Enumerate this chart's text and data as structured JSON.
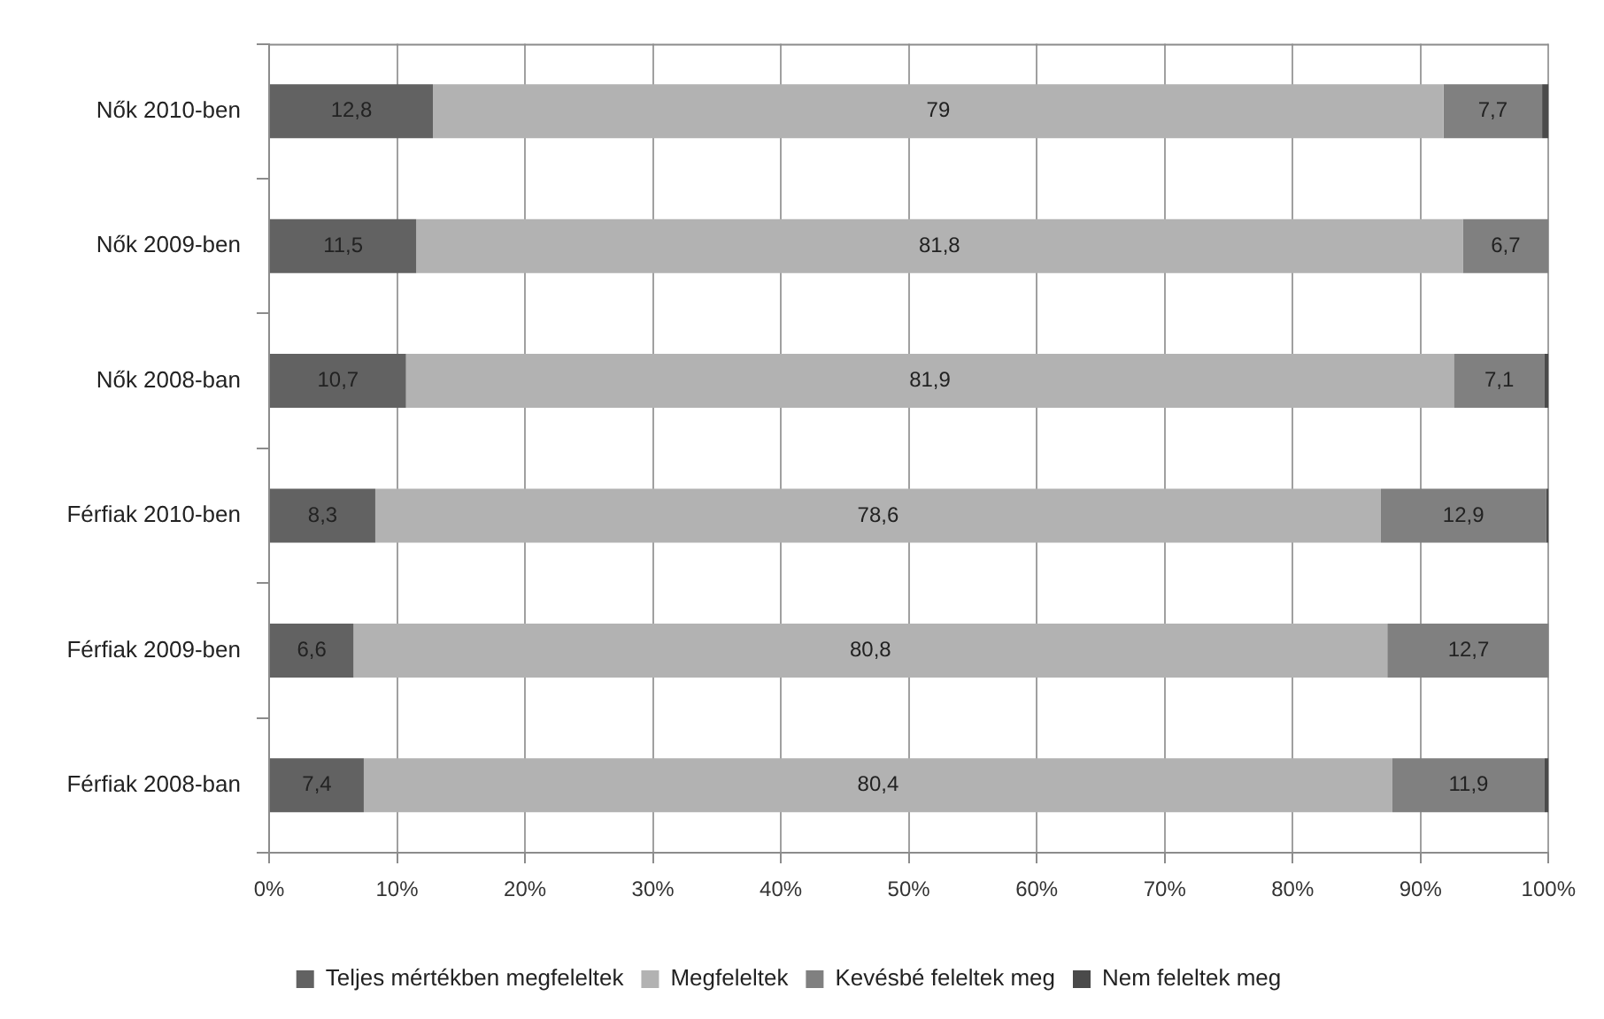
{
  "chart_data": {
    "type": "bar",
    "orientation": "horizontal",
    "stacked": true,
    "categories": [
      "Nők 2010-ben",
      "Nők 2009-ben",
      "Nők 2008-ban",
      "Férfiak 2010-ben",
      "Férfiak 2009-ben",
      "Férfiak 2008-ban"
    ],
    "series": [
      {
        "name": "Teljes mértékben megfeleltek",
        "color": "#626262",
        "values": [
          12.8,
          11.5,
          10.7,
          8.3,
          6.6,
          7.4
        ],
        "value_labels": [
          "12,8",
          "11,5",
          "10,7",
          "8,3",
          "6,6",
          "7,4"
        ]
      },
      {
        "name": "Megfeleltek",
        "color": "#b2b2b2",
        "values": [
          79,
          81.8,
          81.9,
          78.6,
          80.8,
          80.4
        ],
        "value_labels": [
          "79",
          "81,8",
          "81,9",
          "78,6",
          "80,8",
          "80,4"
        ]
      },
      {
        "name": "Kevésbé feleltek meg",
        "color": "#808080",
        "values": [
          7.7,
          6.7,
          7.1,
          12.9,
          12.7,
          11.9
        ],
        "value_labels": [
          "7,7",
          "6,7",
          "7,1",
          "12,9",
          "12,7",
          "11,9"
        ]
      },
      {
        "name": "Nem feleltek meg",
        "color": "#4a4a4a",
        "values": [
          0.5,
          0,
          0.3,
          0.2,
          0,
          0.3
        ]
      }
    ],
    "xlim": [
      0,
      100
    ],
    "xticks": [
      {
        "value": 0,
        "label": "0%"
      },
      {
        "value": 10,
        "label": "10%"
      },
      {
        "value": 20,
        "label": "20%"
      },
      {
        "value": 30,
        "label": "30%"
      },
      {
        "value": 40,
        "label": "40%"
      },
      {
        "value": 50,
        "label": "50%"
      },
      {
        "value": 60,
        "label": "60%"
      },
      {
        "value": 70,
        "label": "70%"
      },
      {
        "value": 80,
        "label": "80%"
      },
      {
        "value": 90,
        "label": "90%"
      },
      {
        "value": 100,
        "label": "100%"
      }
    ],
    "grid": "x",
    "legend": "bottom"
  }
}
